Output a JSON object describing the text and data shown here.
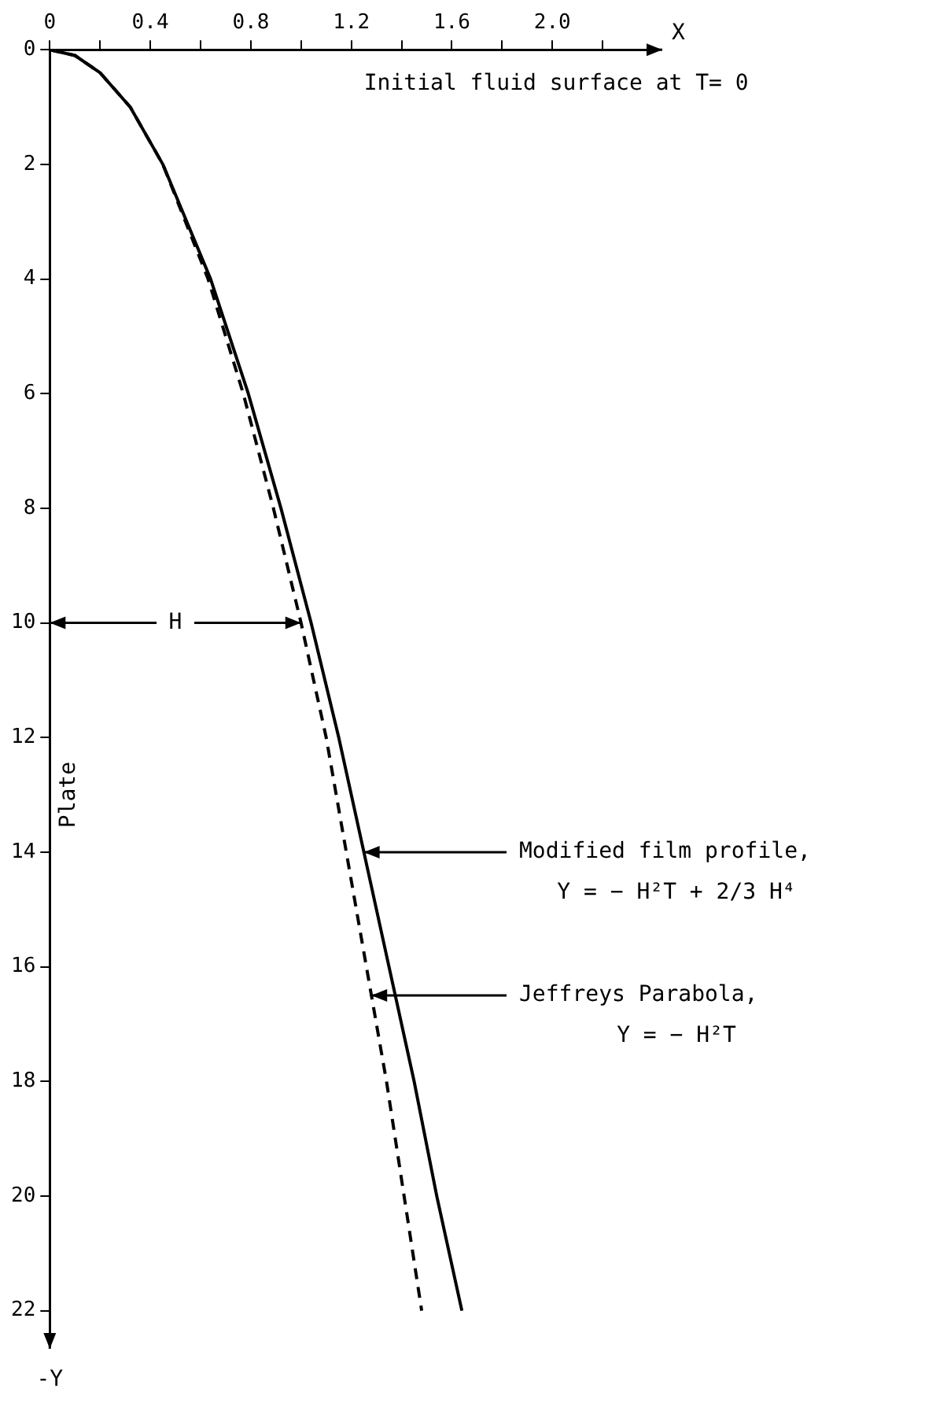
{
  "chart_data": {
    "type": "line",
    "xlabel": "X",
    "ylabel": "-Y",
    "xlim": [
      0,
      2.4
    ],
    "ylim": [
      22.5,
      0
    ],
    "xticks": [
      0,
      {
        "value": 0.2,
        "label": null
      },
      0.4,
      {
        "value": 0.6,
        "label": null
      },
      0.8,
      {
        "value": 1.0,
        "label": null
      },
      1.2,
      {
        "value": 1.4,
        "label": null
      },
      1.6,
      {
        "value": 1.8,
        "label": null
      },
      {
        "value": 2.0,
        "label": "2.0"
      },
      {
        "value": 2.2,
        "label": null
      }
    ],
    "yticks": [
      0,
      2,
      4,
      6,
      8,
      10,
      12,
      14,
      16,
      18,
      20,
      22
    ],
    "grid": false,
    "legend": false,
    "marker": "none",
    "series": [
      {
        "type": "line",
        "color": "#000000",
        "line_style": "solid",
        "x": [
          0,
          0.1,
          0.2,
          0.32,
          0.45,
          0.64,
          0.79,
          0.92,
          1.04,
          1.15,
          1.25,
          1.35,
          1.45,
          1.54,
          1.64
        ],
        "values": [
          0,
          0.1,
          0.4,
          1,
          2,
          4,
          6,
          8,
          10,
          12,
          14,
          16,
          18,
          20,
          22
        ]
      },
      {
        "type": "line",
        "color": "#000000",
        "line_style": "dashed",
        "x": [
          0,
          0.1,
          0.2,
          0.32,
          0.45,
          0.63,
          0.77,
          0.89,
          1.0,
          1.1,
          1.18,
          1.26,
          1.34,
          1.41,
          1.48
        ],
        "values": [
          0,
          0.1,
          0.4,
          1,
          2,
          4,
          6,
          8,
          10,
          12,
          14,
          16,
          18,
          20,
          22
        ]
      }
    ],
    "annotations": [
      "Initial fluid surface at T= 0",
      "Plate",
      {
        "text": "H",
        "x": 1.0,
        "y": 10
      },
      {
        "text": "Modified film profile,\nY = − H²T + 2/3 H⁴",
        "x": 1.25,
        "y": 14
      },
      {
        "text": "Jeffreys Parabola,\nY = − H²T",
        "x": 1.28,
        "y": 16.5
      }
    ]
  }
}
